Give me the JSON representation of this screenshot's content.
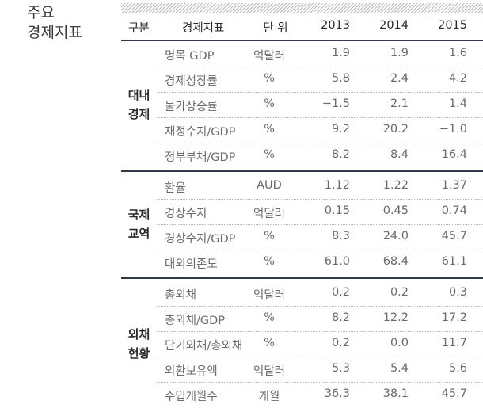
{
  "section_title": [
    "주요",
    "경제지표"
  ],
  "header": {
    "group": "구분",
    "indicator": "경제지표",
    "unit": "단 위",
    "years": [
      "2013",
      "2014",
      "2015"
    ]
  },
  "groups": [
    {
      "label": [
        "대내",
        "경제"
      ],
      "rows": [
        {
          "name": "명목 GDP",
          "unit": "억달러",
          "values": [
            "1.9",
            "1.9",
            "1.6"
          ]
        },
        {
          "name": "경제성장률",
          "unit": "%",
          "values": [
            "5.8",
            "2.4",
            "4.2"
          ]
        },
        {
          "name": "물가상승률",
          "unit": "%",
          "values": [
            "−1.5",
            "2.1",
            "1.4"
          ]
        },
        {
          "name": "재정수지/GDP",
          "unit": "%",
          "values": [
            "9.2",
            "20.2",
            "−1.0"
          ]
        },
        {
          "name": "정부부채/GDP",
          "unit": "%",
          "values": [
            "8.2",
            "8.4",
            "16.4"
          ]
        }
      ]
    },
    {
      "label": [
        "국제",
        "교역"
      ],
      "rows": [
        {
          "name": "환율",
          "unit": "AUD",
          "values": [
            "1.12",
            "1.22",
            "1.37"
          ]
        },
        {
          "name": "경상수지",
          "unit": "억달러",
          "values": [
            "0.15",
            "0.45",
            "0.74"
          ]
        },
        {
          "name": "경상수지/GDP",
          "unit": "%",
          "values": [
            "8.3",
            "24.0",
            "45.7"
          ]
        },
        {
          "name": "대외의존도",
          "unit": "%",
          "values": [
            "61.0",
            "68.4",
            "61.1"
          ]
        }
      ]
    },
    {
      "label": [
        "외채",
        "현황"
      ],
      "rows": [
        {
          "name": "총외채",
          "unit": "억달러",
          "values": [
            "0.2",
            "0.2",
            "0.3"
          ]
        },
        {
          "name": "총외채/GDP",
          "unit": "%",
          "values": [
            "8.2",
            "12.2",
            "17.2"
          ]
        },
        {
          "name": "단기외채/총외채",
          "unit": "%",
          "values": [
            "0.2",
            "0.0",
            "11.7"
          ]
        },
        {
          "name": "외환보유액",
          "unit": "억달러",
          "values": [
            "5.3",
            "5.4",
            "5.6"
          ]
        },
        {
          "name": "수입개월수",
          "unit": "개월",
          "values": [
            "36.3",
            "38.1",
            "45.7"
          ]
        }
      ]
    }
  ]
}
